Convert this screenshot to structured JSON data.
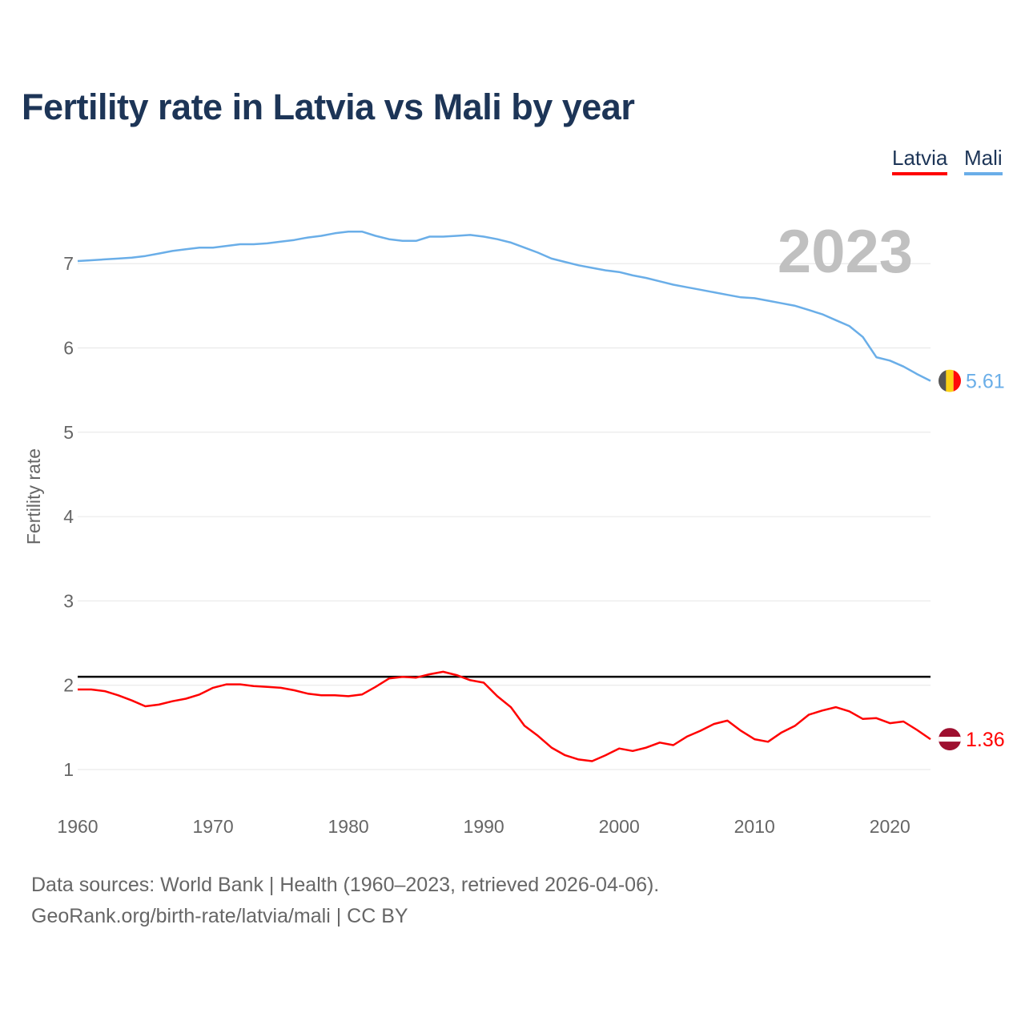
{
  "title": "Fertility rate in Latvia vs Mali by year",
  "legend": [
    "Latvia",
    "Mali"
  ],
  "year_label": "2023",
  "footer": {
    "line1": "Data sources: World Bank | Health (1960–2023, retrieved 2026-04-06).",
    "line2": "GeoRank.org/birth-rate/latvia/mali | CC BY"
  },
  "chart_data": {
    "type": "line",
    "title": "Fertility rate in Latvia vs Mali by year",
    "xlabel": "",
    "ylabel": "Fertility rate",
    "xlim": [
      1960,
      2023
    ],
    "ylim": [
      0.5,
      7.7
    ],
    "x_ticks": [
      "1960",
      "1970",
      "1980",
      "1990",
      "2000",
      "2010",
      "2020"
    ],
    "y_ticks": [
      "1",
      "2",
      "3",
      "4",
      "5",
      "6",
      "7"
    ],
    "grid": true,
    "legend_position": "top-right",
    "reference_line": {
      "value": 2.1,
      "color": "#000000"
    },
    "x_start": 1960,
    "series": [
      {
        "name": "Latvia",
        "color": "#ff0000",
        "flag": "latvia-flag",
        "end_label": "1.36",
        "values": [
          1.95,
          1.95,
          1.93,
          1.88,
          1.82,
          1.75,
          1.77,
          1.81,
          1.84,
          1.89,
          1.97,
          2.01,
          2.01,
          1.99,
          1.98,
          1.97,
          1.94,
          1.9,
          1.88,
          1.88,
          1.87,
          1.89,
          1.98,
          2.08,
          2.1,
          2.09,
          2.13,
          2.16,
          2.12,
          2.06,
          2.03,
          1.87,
          1.74,
          1.52,
          1.4,
          1.26,
          1.17,
          1.12,
          1.1,
          1.17,
          1.25,
          1.22,
          1.26,
          1.32,
          1.29,
          1.39,
          1.46,
          1.54,
          1.58,
          1.46,
          1.36,
          1.33,
          1.44,
          1.52,
          1.65,
          1.7,
          1.74,
          1.69,
          1.6,
          1.61,
          1.55,
          1.57,
          1.47,
          1.36
        ]
      },
      {
        "name": "Mali",
        "color": "#6aaee8",
        "flag": "mali-flag",
        "end_label": "5.61",
        "values": [
          7.03,
          7.04,
          7.05,
          7.06,
          7.07,
          7.09,
          7.12,
          7.15,
          7.17,
          7.19,
          7.19,
          7.21,
          7.23,
          7.23,
          7.24,
          7.26,
          7.28,
          7.31,
          7.33,
          7.36,
          7.38,
          7.38,
          7.33,
          7.29,
          7.27,
          7.27,
          7.32,
          7.32,
          7.33,
          7.34,
          7.32,
          7.29,
          7.25,
          7.19,
          7.13,
          7.06,
          7.02,
          6.98,
          6.95,
          6.92,
          6.9,
          6.86,
          6.83,
          6.79,
          6.75,
          6.72,
          6.69,
          6.66,
          6.63,
          6.6,
          6.59,
          6.56,
          6.53,
          6.5,
          6.45,
          6.4,
          6.33,
          6.26,
          6.13,
          5.89,
          5.85,
          5.78,
          5.69,
          5.61
        ]
      }
    ]
  }
}
